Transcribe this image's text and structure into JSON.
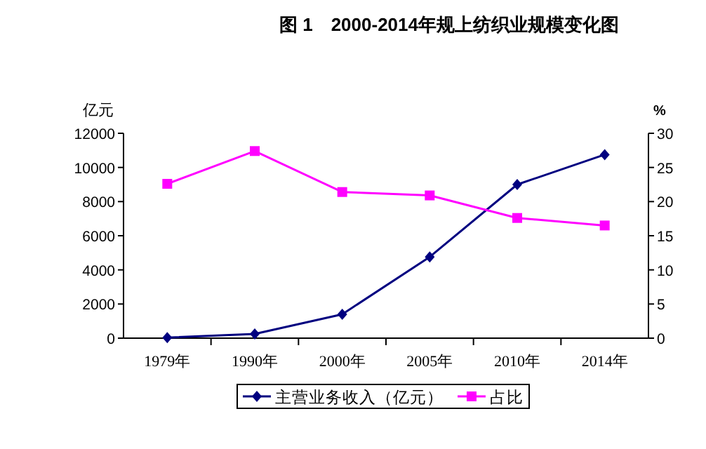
{
  "chart_data": {
    "type": "line",
    "title": "图 1　2000-2014年规上纺织业规模变化图",
    "ylabel": "亿元",
    "y2label": "%",
    "categories": [
      "1979年",
      "1990年",
      "2000年",
      "2005年",
      "2010年",
      "2014年"
    ],
    "series": [
      {
        "name": "主营业务收入（亿元）",
        "color": "#000080",
        "values": [
          30,
          250,
          1400,
          4760,
          9000,
          10750
        ],
        "marker": "diamond"
      },
      {
        "name": "占比",
        "color": "#ff00ff",
        "values": [
          22.6,
          27.4,
          21.4,
          20.9,
          17.6,
          16.5
        ],
        "axis": "y2",
        "marker": "square"
      }
    ],
    "ylim": [
      0,
      12000
    ],
    "yticks": [
      0,
      2000,
      4000,
      6000,
      8000,
      10000,
      12000
    ],
    "y2lim": [
      0,
      30
    ],
    "y2ticks": [
      0,
      5,
      10,
      15,
      20,
      25,
      30
    ],
    "grid": false,
    "legend": "bottom"
  }
}
